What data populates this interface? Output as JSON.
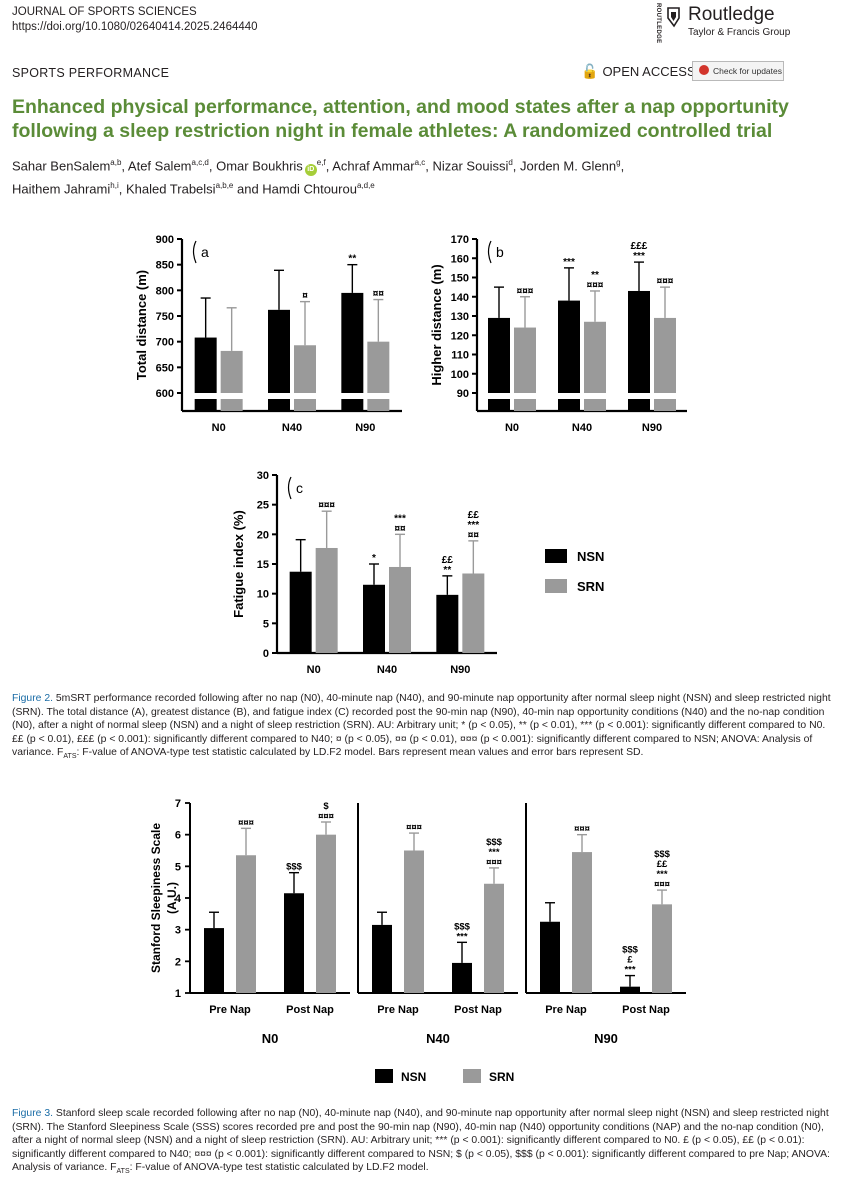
{
  "header": {
    "journal": "JOURNAL OF SPORTS SCIENCES",
    "doi": "https://doi.org/10.1080/02640414.2025.2464440",
    "publisher": "Routledge",
    "publisher_group": "Taylor & Francis Group",
    "publisher_vertical": "ROUTLEDGE",
    "section": "SPORTS PERFORMANCE",
    "open_access": "OPEN ACCESS",
    "check_updates": "Check for updates"
  },
  "title": "Enhanced physical performance, attention, and mood states after a nap opportunity following a sleep restriction night in female athletes: A randomized controlled trial",
  "authors": [
    {
      "name": "Sahar BenSalem",
      "aff": "a,b",
      "sep": ", "
    },
    {
      "name": "Atef Salem",
      "aff": "a,c,d",
      "sep": ", "
    },
    {
      "name": "Omar Boukhris",
      "aff": "e,f",
      "sep": ", ",
      "orcid": true
    },
    {
      "name": "Achraf Ammar",
      "aff": "a,c",
      "sep": ", "
    },
    {
      "name": "Nizar Souissi",
      "aff": "d",
      "sep": ", "
    },
    {
      "name": "Jorden M. Glenn",
      "aff": "g",
      "sep": ","
    },
    {
      "name": "Haithem Jahrami",
      "aff": "h,i",
      "sep": ", ",
      "newline": true
    },
    {
      "name": "Khaled Trabelsi",
      "aff": "a,b,e",
      "sep": " and "
    },
    {
      "name": "Hamdi Chtourou",
      "aff": "a,d,e",
      "sep": ""
    }
  ],
  "chart_data": [
    {
      "type": "bar",
      "panel": "a",
      "ylabel": "Total distance (m)",
      "yticks": [
        600,
        650,
        700,
        750,
        800,
        850,
        900
      ],
      "ylim": [
        600,
        900
      ],
      "categories": [
        "N0",
        "N40",
        "N90"
      ],
      "series": [
        {
          "name": "NSN",
          "color": "#000000",
          "values": [
            708,
            762,
            795
          ],
          "sd": [
            77,
            77,
            55
          ]
        },
        {
          "name": "SRN",
          "color": "#9a9a9a",
          "values": [
            682,
            693,
            700
          ],
          "sd": [
            84,
            85,
            82
          ]
        }
      ],
      "annotations": [
        {
          "series": 0,
          "category": 2,
          "lines": [
            "**"
          ]
        },
        {
          "series": 1,
          "category": 1,
          "lines": [
            "¤"
          ]
        },
        {
          "series": 1,
          "category": 2,
          "lines": [
            "¤¤"
          ]
        }
      ]
    },
    {
      "type": "bar",
      "panel": "b",
      "ylabel": "Higher distance (m)",
      "yticks": [
        90,
        100,
        110,
        120,
        130,
        140,
        150,
        160,
        170
      ],
      "ylim": [
        90,
        170
      ],
      "categories": [
        "N0",
        "N40",
        "N90"
      ],
      "series": [
        {
          "name": "NSN",
          "color": "#000000",
          "values": [
            129,
            138,
            143
          ],
          "sd": [
            16,
            17,
            15
          ]
        },
        {
          "name": "SRN",
          "color": "#9a9a9a",
          "values": [
            124,
            127,
            129
          ],
          "sd": [
            16,
            16,
            16
          ]
        }
      ],
      "annotations": [
        {
          "series": 1,
          "category": 0,
          "lines": [
            "¤¤¤"
          ]
        },
        {
          "series": 0,
          "category": 1,
          "lines": [
            "***"
          ]
        },
        {
          "series": 1,
          "category": 1,
          "lines": [
            "**",
            "¤¤¤"
          ]
        },
        {
          "series": 0,
          "category": 2,
          "lines": [
            "£££",
            "***"
          ]
        },
        {
          "series": 1,
          "category": 2,
          "lines": [
            "¤¤¤"
          ]
        }
      ]
    },
    {
      "type": "bar",
      "panel": "c",
      "ylabel": "Fatigue index (%)",
      "yticks": [
        0,
        5,
        10,
        15,
        20,
        25,
        30
      ],
      "ylim": [
        0,
        30
      ],
      "categories": [
        "N0",
        "N40",
        "N90"
      ],
      "series": [
        {
          "name": "NSN",
          "color": "#000000",
          "values": [
            13.7,
            11.5,
            9.8
          ],
          "sd": [
            5.4,
            3.5,
            3.2
          ]
        },
        {
          "name": "SRN",
          "color": "#9a9a9a",
          "values": [
            17.7,
            14.5,
            13.4
          ],
          "sd": [
            6.2,
            5.5,
            5.5
          ]
        }
      ],
      "annotations": [
        {
          "series": 1,
          "category": 0,
          "lines": [
            "¤¤¤"
          ]
        },
        {
          "series": 0,
          "category": 1,
          "lines": [
            "*"
          ]
        },
        {
          "series": 1,
          "category": 1,
          "lines": [
            "***",
            "¤¤"
          ]
        },
        {
          "series": 0,
          "category": 2,
          "lines": [
            "££",
            "**"
          ]
        },
        {
          "series": 1,
          "category": 2,
          "lines": [
            "££",
            "***",
            "¤¤"
          ]
        }
      ],
      "legend": [
        "NSN",
        "SRN"
      ]
    },
    {
      "type": "bar",
      "ylabel": "Stanford Sleepiness Scale (A.U.)",
      "ylabel_lines": [
        "Stanford Sleepiness Scale",
        "(A.U.)"
      ],
      "yticks": [
        1,
        2,
        3,
        4,
        5,
        6,
        7
      ],
      "ylim": [
        1,
        7
      ],
      "groups": [
        {
          "name": "N0",
          "categories": [
            "Pre Nap",
            "Post Nap"
          ],
          "NSN": [
            3.05,
            4.15
          ],
          "NSN_sd": [
            0.5,
            0.65
          ],
          "SRN": [
            5.35,
            6.0
          ],
          "SRN_sd": [
            0.85,
            0.4
          ]
        },
        {
          "name": "N40",
          "categories": [
            "Pre Nap",
            "Post Nap"
          ],
          "NSN": [
            3.15,
            1.95
          ],
          "NSN_sd": [
            0.4,
            0.65
          ],
          "SRN": [
            5.5,
            4.45
          ],
          "SRN_sd": [
            0.55,
            0.5
          ]
        },
        {
          "name": "N90",
          "categories": [
            "Pre Nap",
            "Post Nap"
          ],
          "NSN": [
            3.25,
            1.2
          ],
          "NSN_sd": [
            0.6,
            0.35
          ],
          "SRN": [
            5.45,
            3.8
          ],
          "SRN_sd": [
            0.55,
            0.45
          ]
        }
      ],
      "annotations": [
        {
          "group": 0,
          "cat": 0,
          "series": 1,
          "lines": [
            "¤¤¤"
          ]
        },
        {
          "group": 0,
          "cat": 1,
          "series": 0,
          "lines": [
            "$$$"
          ]
        },
        {
          "group": 0,
          "cat": 1,
          "series": 1,
          "lines": [
            "$",
            "¤¤¤"
          ]
        },
        {
          "group": 1,
          "cat": 0,
          "series": 1,
          "lines": [
            "¤¤¤"
          ]
        },
        {
          "group": 1,
          "cat": 1,
          "series": 0,
          "lines": [
            "$$$",
            "***"
          ]
        },
        {
          "group": 1,
          "cat": 1,
          "series": 1,
          "lines": [
            "$$$",
            "***",
            "¤¤¤"
          ]
        },
        {
          "group": 2,
          "cat": 0,
          "series": 1,
          "lines": [
            "¤¤¤"
          ]
        },
        {
          "group": 2,
          "cat": 1,
          "series": 0,
          "lines": [
            "$$$",
            "£",
            "***"
          ]
        },
        {
          "group": 2,
          "cat": 1,
          "series": 1,
          "lines": [
            "$$$",
            "££",
            "***",
            "¤¤¤"
          ]
        }
      ],
      "legend": [
        "NSN",
        "SRN"
      ]
    }
  ],
  "captions": {
    "fig2_label": "Figure 2.",
    "fig2_text": "5mSRT performance recorded following after no nap (N0), 40-minute nap (N40), and 90-minute nap opportunity after normal sleep night (NSN) and sleep restricted night (SRN). The total distance (A), greatest distance (B), and fatigue index (C) recorded post the 90-min nap (N90), 40-min nap opportunity conditions (N40) and the no-nap condition (N0), after a night of normal sleep (NSN) and a night of sleep restriction (SRN). AU: Arbitrary unit; * (p < 0.05), ** (p < 0.01), *** (p < 0.001): significantly different compared to N0. ££ (p < 0.01), £££ (p < 0.001): significantly different compared to N40; ¤ (p < 0.05), ¤¤ (p < 0.01), ¤¤¤ (p < 0.001): significantly different compared to NSN; ANOVA: Analysis of variance. F",
    "fig2_sub": "ATS",
    "fig2_tail": ": F-value of ANOVA-type test statistic calculated by LD.F2 model. Bars represent mean values and error bars represent SD.",
    "fig3_label": "Figure 3.",
    "fig3_text": "Stanford sleep scale recorded following after no nap (N0), 40-minute nap (N40), and 90-minute nap opportunity after normal sleep night (NSN) and sleep restricted night (SRN). The Stanford Sleepiness Scale (SSS) scores recorded pre and post the 90-min nap (N90), 40-min nap (N40) opportunity conditions (NAP) and the no-nap condition (N0), after a night of normal sleep (NSN) and a night of sleep restriction (SRN). AU: Arbitrary unit; *** (p < 0.001): significantly different compared to N0. £ (p < 0.05), ££ (p < 0.01): significantly different compared to N40; ¤¤¤ (p < 0.001): significantly different compared to NSN; $ (p < 0.05), $$$ (p < 0.001): significantly different compared to pre Nap; ANOVA: Analysis of variance. F",
    "fig3_sub": "ATS",
    "fig3_tail": ": F-value of ANOVA-type test statistic calculated by LD.F2 model."
  }
}
